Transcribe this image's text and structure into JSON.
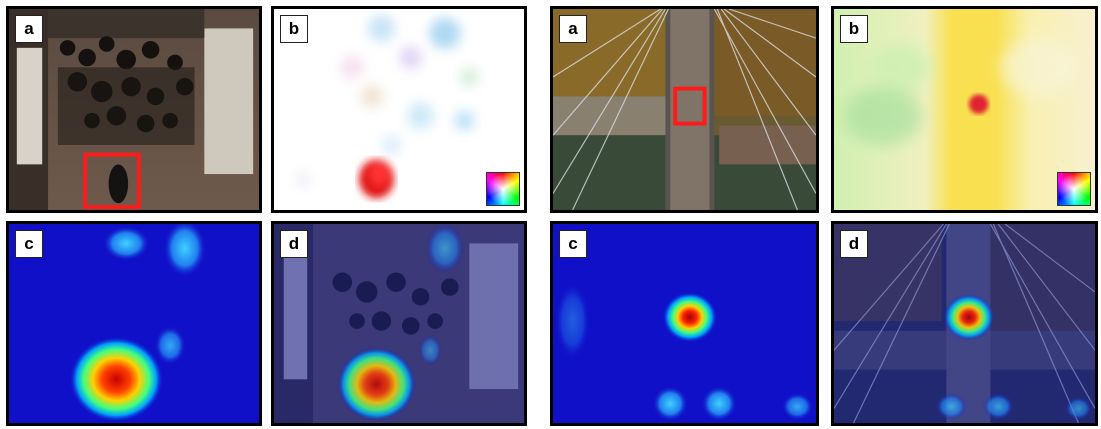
{
  "figure": {
    "left_group": {
      "panels": [
        {
          "id": "a",
          "label": "a",
          "kind": "crowd-frame"
        },
        {
          "id": "b",
          "label": "b",
          "kind": "optical-flow"
        },
        {
          "id": "c",
          "label": "c",
          "kind": "heatmap"
        },
        {
          "id": "d",
          "label": "d",
          "kind": "heatmap-overlay"
        }
      ]
    },
    "right_group": {
      "panels": [
        {
          "id": "a",
          "label": "a",
          "kind": "bridge-frame"
        },
        {
          "id": "b",
          "label": "b",
          "kind": "optical-flow"
        },
        {
          "id": "c",
          "label": "c",
          "kind": "heatmap"
        },
        {
          "id": "d",
          "label": "d",
          "kind": "heatmap-overlay"
        }
      ]
    },
    "colors": {
      "highlight_box": "#ff1a1a",
      "heatmap_bg": "#1010c8",
      "border": "#000000"
    },
    "icons": [
      "color-wheel-icon"
    ]
  }
}
